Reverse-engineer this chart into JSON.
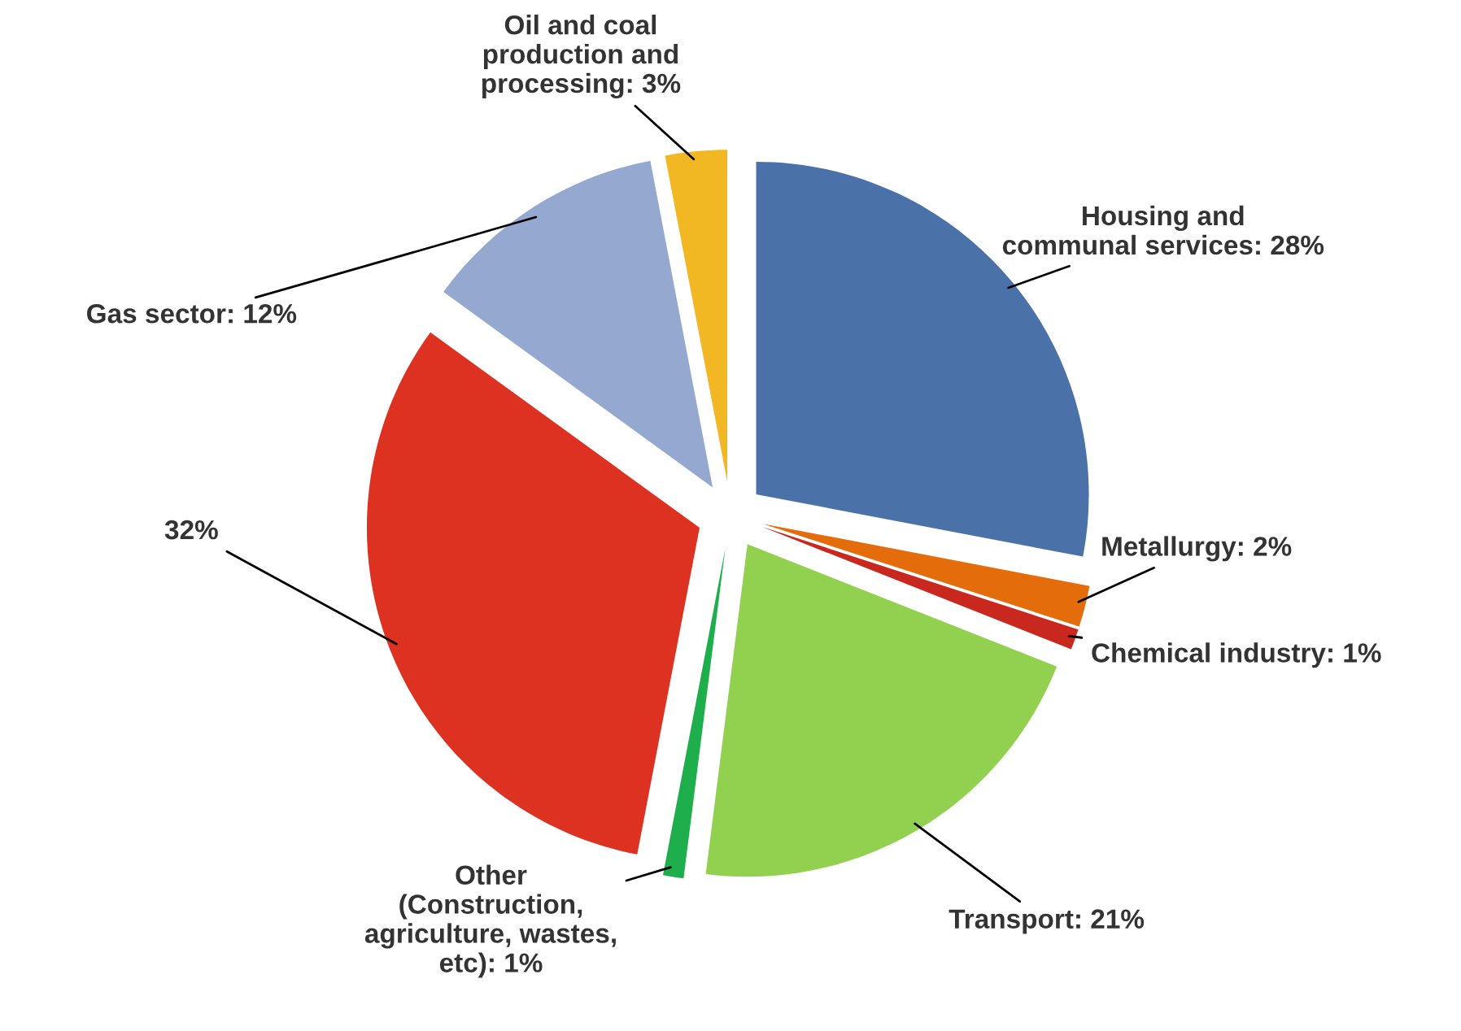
{
  "chart_data": {
    "type": "pie",
    "categories": [
      "Housing and\ncommunal services",
      "Metallurgy",
      "Chemical industry",
      "Transport",
      "Other\n(Construction,\nagriculture, wastes,\netc)",
      null,
      "Gas sector",
      "Oil and coal\nproduction and\nprocessing"
    ],
    "values": [
      28,
      2,
      1,
      21,
      1,
      32,
      12,
      3
    ],
    "value_labels": [
      "28%",
      "2%",
      "1%",
      "21%",
      "1%",
      "32%",
      "12%",
      "3%"
    ],
    "colors": [
      "#4a71a8",
      "#e46c0a",
      "#c8281e",
      "#92d050",
      "#1fae4c",
      "#dd3222",
      "#94a8d0",
      "#f2b824"
    ],
    "legend": false
  }
}
